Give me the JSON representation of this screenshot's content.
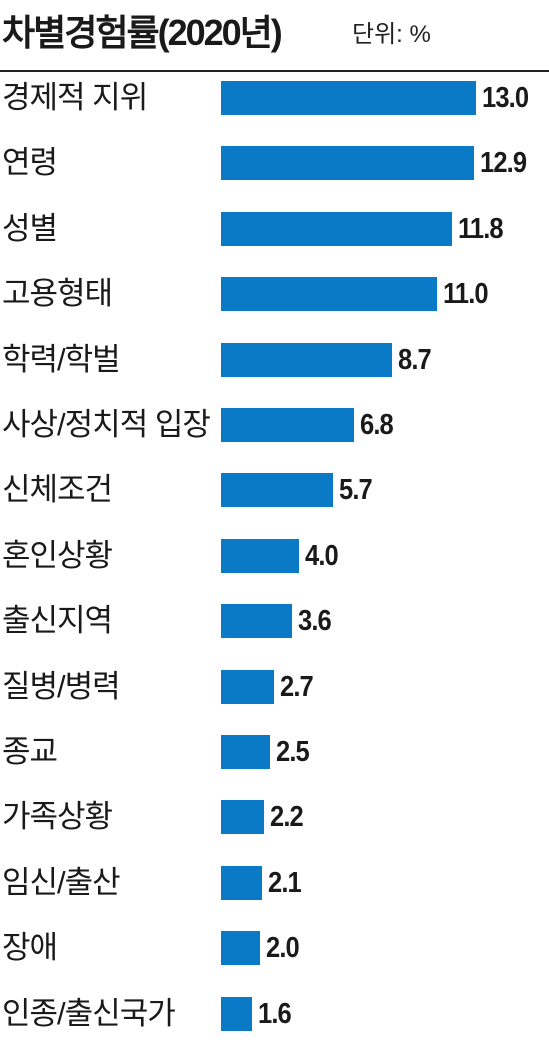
{
  "header": {
    "title": "차별경험률(2020년)",
    "unit": "단위: %"
  },
  "colors": {
    "bar": "#0a7ac6",
    "text": "#1a1a1a"
  },
  "chart_data": {
    "type": "bar",
    "orientation": "horizontal",
    "title": "차별경험률(2020년)",
    "unit": "단위: %",
    "xlim": [
      0,
      13
    ],
    "grid": false,
    "categories": [
      "경제적 지위",
      "연령",
      "성별",
      "고용형태",
      "학력/학벌",
      "사상/정치적 입장",
      "신체조건",
      "혼인상황",
      "출신지역",
      "질병/병력",
      "종교",
      "가족상황",
      "임신/출산",
      "장애",
      "인종/출신국가"
    ],
    "values": [
      13.0,
      12.9,
      11.8,
      11.0,
      8.7,
      6.8,
      5.7,
      4.0,
      3.6,
      2.7,
      2.5,
      2.2,
      2.1,
      2.0,
      1.6
    ],
    "value_labels": [
      "13.0",
      "12.9",
      "11.8",
      "11.0",
      "8.7",
      "6.8",
      "5.7",
      "4.0",
      "3.6",
      "2.7",
      "2.5",
      "2.2",
      "2.1",
      "2.0",
      "1.6"
    ]
  }
}
